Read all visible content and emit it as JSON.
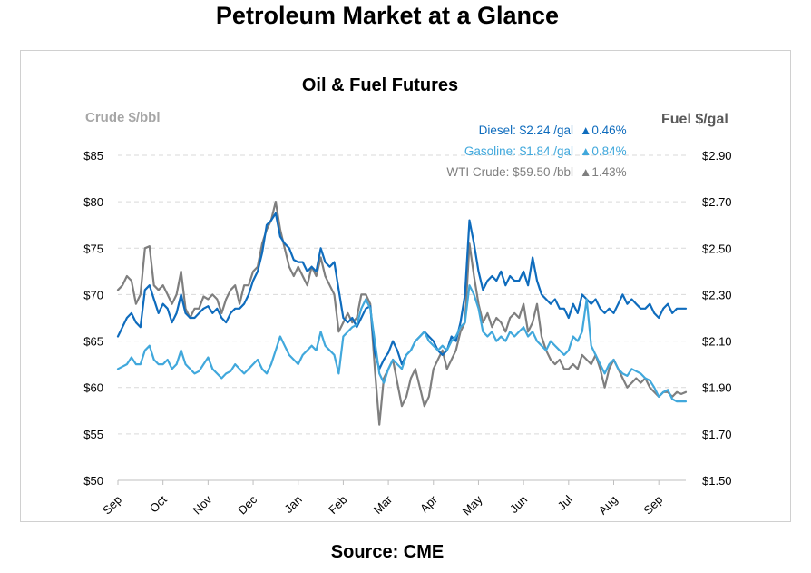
{
  "page": {
    "title": "Petroleum Market at a Glance",
    "source": "Source: CME"
  },
  "chart_data": {
    "type": "line",
    "title": "Oil & Fuel Futures",
    "ylabel_left": "Crude $/bbl",
    "ylabel_right": "Fuel $/gal",
    "ylim_left": [
      50,
      85
    ],
    "ylim_right": [
      1.5,
      2.9
    ],
    "yticks_left": [
      "$50",
      "$55",
      "$60",
      "$65",
      "$70",
      "$75",
      "$80",
      "$85"
    ],
    "yticks_right": [
      "$1.50",
      "$1.70",
      "$1.90",
      "$2.10",
      "$2.30",
      "$2.50",
      "$2.70",
      "$2.90"
    ],
    "xticks": [
      "Sep",
      "Oct",
      "Nov",
      "Dec",
      "Jan",
      "Feb",
      "Mar",
      "Apr",
      "May",
      "Jun",
      "Jul",
      "Aug",
      "Sep"
    ],
    "grid": true,
    "legend_position": "top-right",
    "legend": [
      {
        "series": "Diesel",
        "text": "Diesel:  $2.24 /gal",
        "change": "▲0.46%",
        "color": "#0f6cbd"
      },
      {
        "series": "Gasoline",
        "text": "Gasoline:  $1.84 /gal",
        "change": "▲0.84%",
        "color": "#41a8dc"
      },
      {
        "series": "WTI Crude",
        "text": "WTI Crude: $59.50 /bbl",
        "change": "▲1.43%",
        "color": "#7f7f7f"
      }
    ],
    "x": [
      0.0,
      0.1,
      0.2,
      0.3,
      0.4,
      0.5,
      0.6,
      0.7,
      0.8,
      0.9,
      1.0,
      1.1,
      1.2,
      1.3,
      1.4,
      1.5,
      1.6,
      1.7,
      1.8,
      1.9,
      2.0,
      2.1,
      2.2,
      2.3,
      2.4,
      2.5,
      2.6,
      2.7,
      2.8,
      2.9,
      3.0,
      3.1,
      3.2,
      3.3,
      3.4,
      3.5,
      3.6,
      3.7,
      3.8,
      3.9,
      4.0,
      4.1,
      4.2,
      4.3,
      4.4,
      4.5,
      4.6,
      4.7,
      4.8,
      4.9,
      5.0,
      5.1,
      5.2,
      5.3,
      5.4,
      5.5,
      5.6,
      5.7,
      5.8,
      5.9,
      6.0,
      6.1,
      6.2,
      6.3,
      6.4,
      6.5,
      6.6,
      6.7,
      6.8,
      6.9,
      7.0,
      7.1,
      7.2,
      7.3,
      7.4,
      7.5,
      7.6,
      7.7,
      7.8,
      7.9,
      8.0,
      8.1,
      8.2,
      8.3,
      8.4,
      8.5,
      8.6,
      8.7,
      8.8,
      8.9,
      9.0,
      9.1,
      9.2,
      9.3,
      9.4,
      9.5,
      9.6,
      9.7,
      9.8,
      9.9,
      10.0,
      10.1,
      10.2,
      10.3,
      10.4,
      10.5,
      10.6,
      10.7,
      10.8,
      10.9,
      11.0,
      11.1,
      11.2,
      11.3,
      11.4,
      11.5,
      11.6,
      11.7,
      11.8,
      11.9,
      12.0,
      12.1,
      12.2,
      12.3,
      12.4,
      12.5,
      12.6
    ],
    "series": [
      {
        "name": "WTI Crude",
        "axis": "left",
        "color": "#7f7f7f",
        "values": [
          70.5,
          71.0,
          72.0,
          71.5,
          69.0,
          70.0,
          75.0,
          75.2,
          71.0,
          70.5,
          71.0,
          70.0,
          69.0,
          70.0,
          72.5,
          68.5,
          67.5,
          68.5,
          68.5,
          69.8,
          69.5,
          70.0,
          69.5,
          68.0,
          69.5,
          70.5,
          71.0,
          69.0,
          71.0,
          71.0,
          72.5,
          73.0,
          75.5,
          77.0,
          78.0,
          80.0,
          77.0,
          75.0,
          73.0,
          72.0,
          73.0,
          72.0,
          71.0,
          73.0,
          72.0,
          74.0,
          72.0,
          71.0,
          70.0,
          66.0,
          67.0,
          68.0,
          67.0,
          67.5,
          70.0,
          70.0,
          69.0,
          62.0,
          56.0,
          61.0,
          62.0,
          63.0,
          60.5,
          58.0,
          59.0,
          61.0,
          62.0,
          60.0,
          58.0,
          59.0,
          62.0,
          63.0,
          64.0,
          62.0,
          63.0,
          64.0,
          66.0,
          67.0,
          75.5,
          72.0,
          69.0,
          67.0,
          68.0,
          66.5,
          67.5,
          67.0,
          66.0,
          67.5,
          68.0,
          67.5,
          69.0,
          66.0,
          67.0,
          69.0,
          65.5,
          64.0,
          63.0,
          62.5,
          63.0,
          62.0,
          62.0,
          62.5,
          62.0,
          63.5,
          63.0,
          62.5,
          63.5,
          62.0,
          60.0,
          62.0,
          63.0,
          62.0,
          61.0,
          60.0,
          60.5,
          61.0,
          60.5,
          61.0,
          60.0,
          59.5,
          59.0,
          59.5,
          59.5,
          59.0,
          59.5,
          59.3,
          59.5
        ]
      },
      {
        "name": "Diesel",
        "axis": "right",
        "color": "#0f6cbd",
        "values": [
          2.12,
          2.16,
          2.2,
          2.22,
          2.18,
          2.16,
          2.32,
          2.34,
          2.28,
          2.22,
          2.26,
          2.24,
          2.18,
          2.22,
          2.3,
          2.22,
          2.2,
          2.2,
          2.22,
          2.24,
          2.25,
          2.22,
          2.24,
          2.2,
          2.18,
          2.22,
          2.24,
          2.24,
          2.26,
          2.3,
          2.36,
          2.4,
          2.48,
          2.6,
          2.62,
          2.65,
          2.55,
          2.52,
          2.5,
          2.45,
          2.44,
          2.44,
          2.4,
          2.42,
          2.4,
          2.5,
          2.44,
          2.42,
          2.44,
          2.32,
          2.2,
          2.18,
          2.2,
          2.16,
          2.2,
          2.24,
          2.25,
          2.05,
          1.98,
          2.02,
          2.05,
          2.1,
          2.06,
          2.0,
          2.04,
          2.06,
          2.1,
          2.12,
          2.14,
          2.12,
          2.1,
          2.06,
          2.04,
          2.06,
          2.12,
          2.1,
          2.18,
          2.3,
          2.62,
          2.52,
          2.4,
          2.32,
          2.36,
          2.38,
          2.36,
          2.4,
          2.34,
          2.38,
          2.36,
          2.36,
          2.4,
          2.34,
          2.46,
          2.36,
          2.3,
          2.28,
          2.26,
          2.28,
          2.24,
          2.24,
          2.2,
          2.26,
          2.22,
          2.3,
          2.28,
          2.26,
          2.28,
          2.24,
          2.22,
          2.24,
          2.22,
          2.26,
          2.3,
          2.26,
          2.28,
          2.26,
          2.24,
          2.24,
          2.26,
          2.22,
          2.2,
          2.24,
          2.26,
          2.22,
          2.24,
          2.24,
          2.24
        ]
      },
      {
        "name": "Gasoline",
        "axis": "right",
        "color": "#41a8dc",
        "values": [
          1.98,
          1.99,
          2.0,
          2.03,
          2.0,
          2.0,
          2.06,
          2.08,
          2.02,
          2.0,
          2.0,
          2.02,
          1.98,
          2.0,
          2.06,
          2.0,
          1.98,
          1.96,
          1.97,
          2.0,
          2.03,
          1.98,
          1.96,
          1.94,
          1.96,
          1.97,
          2.0,
          1.98,
          1.96,
          1.98,
          2.0,
          2.02,
          1.98,
          1.96,
          2.0,
          2.06,
          2.12,
          2.08,
          2.04,
          2.02,
          2.0,
          2.04,
          2.06,
          2.08,
          2.06,
          2.14,
          2.08,
          2.06,
          2.04,
          1.96,
          2.12,
          2.14,
          2.16,
          2.17,
          2.24,
          2.28,
          2.24,
          2.1,
          1.96,
          1.92,
          1.98,
          2.02,
          2.0,
          1.98,
          2.04,
          2.06,
          2.1,
          2.12,
          2.14,
          2.1,
          2.08,
          2.06,
          2.08,
          2.06,
          2.1,
          2.12,
          2.16,
          2.18,
          2.34,
          2.3,
          2.24,
          2.14,
          2.12,
          2.14,
          2.1,
          2.12,
          2.1,
          2.14,
          2.12,
          2.14,
          2.16,
          2.12,
          2.14,
          2.1,
          2.08,
          2.06,
          2.1,
          2.08,
          2.06,
          2.04,
          2.06,
          2.12,
          2.1,
          2.14,
          2.28,
          2.08,
          2.04,
          2.0,
          1.96,
          2.0,
          2.02,
          1.98,
          1.96,
          1.95,
          1.98,
          1.97,
          1.96,
          1.94,
          1.93,
          1.9,
          1.86,
          1.88,
          1.89,
          1.85,
          1.84,
          1.84,
          1.84
        ]
      }
    ]
  }
}
